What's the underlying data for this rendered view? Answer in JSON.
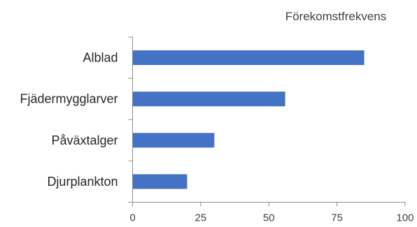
{
  "chart_data": {
    "type": "bar",
    "orientation": "horizontal",
    "title": "Förekomstfrekvens",
    "categories": [
      "Alblad",
      "Fjädermygglarver",
      "Påväxtalger",
      "Djurplankton"
    ],
    "values": [
      85,
      56,
      30,
      20
    ],
    "xlim": [
      0,
      100
    ],
    "xticks": [
      0,
      25,
      50,
      75,
      100
    ],
    "xtick_labels": [
      "0",
      "25",
      "50",
      "75",
      "100"
    ],
    "xlabel": "",
    "ylabel": "",
    "grid": false,
    "legend": "none",
    "bar_color": "#4472C4"
  }
}
